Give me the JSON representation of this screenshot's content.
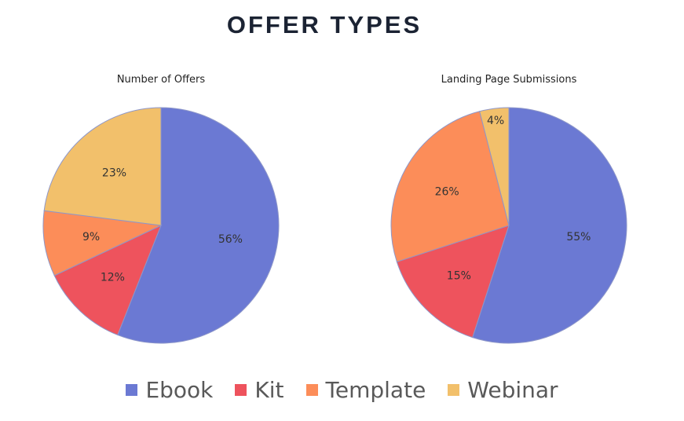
{
  "page": {
    "title": "OFFER TYPES"
  },
  "legend": [
    {
      "name": "Ebook",
      "color": "#6b79d3"
    },
    {
      "name": "Kit",
      "color": "#ee535d"
    },
    {
      "name": "Template",
      "color": "#fc8d59"
    },
    {
      "name": "Webinar",
      "color": "#f2c06b"
    }
  ],
  "chart_data": [
    {
      "type": "pie",
      "title": "Number of Offers",
      "slices": [
        {
          "name": "Ebook",
          "value": 56,
          "label": "56%",
          "color": "#6b79d3"
        },
        {
          "name": "Kit",
          "value": 12,
          "label": "12%",
          "color": "#ee535d"
        },
        {
          "name": "Template",
          "value": 9,
          "label": "9%",
          "color": "#fc8d59"
        },
        {
          "name": "Webinar",
          "value": 23,
          "label": "23%",
          "color": "#f2c06b"
        }
      ],
      "legend_position": "bottom"
    },
    {
      "type": "pie",
      "title": "Landing Page Submissions",
      "slices": [
        {
          "name": "Ebook",
          "value": 55,
          "label": "55%",
          "color": "#6b79d3"
        },
        {
          "name": "Kit",
          "value": 15,
          "label": "15%",
          "color": "#ee535d"
        },
        {
          "name": "Template",
          "value": 26,
          "label": "26%",
          "color": "#fc8d59"
        },
        {
          "name": "Webinar",
          "value": 4,
          "label": "4%",
          "color": "#f2c06b"
        }
      ],
      "legend_position": "bottom"
    }
  ]
}
